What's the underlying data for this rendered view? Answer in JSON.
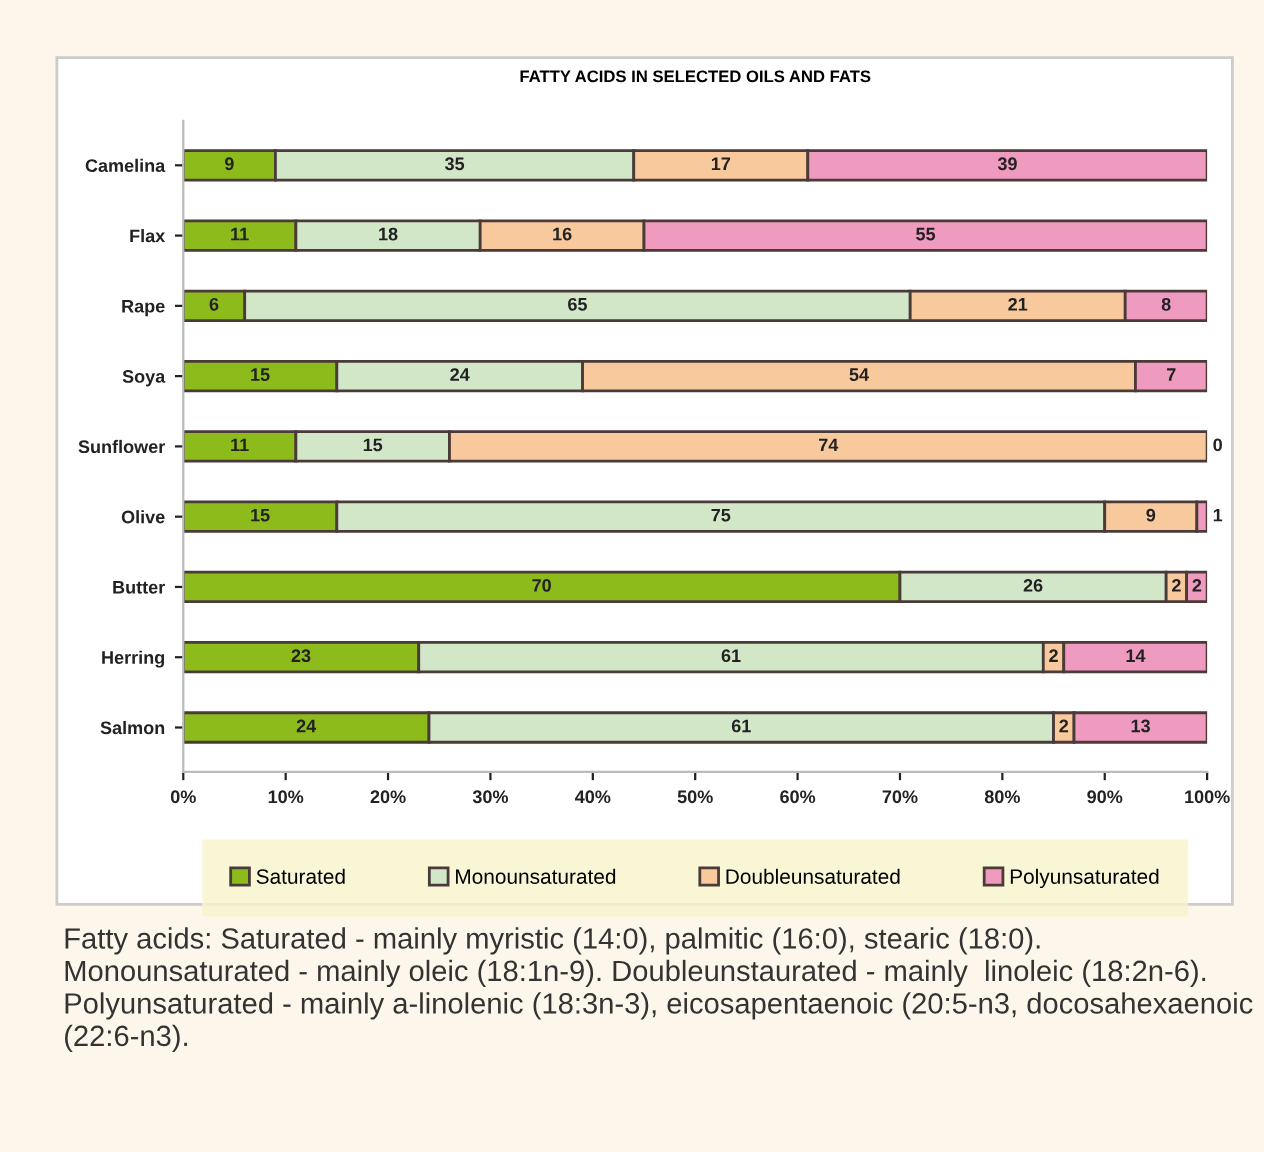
{
  "chart_data": {
    "type": "bar",
    "orientation": "horizontal",
    "stacked": true,
    "title": "FATTY ACIDS IN SELECTED OILS AND FATS",
    "categories": [
      "Camelina",
      "Flax",
      "Rape",
      "Soya",
      "Sunflower",
      "Olive",
      "Butter",
      "Herring",
      "Salmon"
    ],
    "series": [
      {
        "name": "Saturated",
        "color": "#8dbb1c",
        "values": [
          9,
          11,
          6,
          15,
          11,
          15,
          70,
          23,
          24
        ]
      },
      {
        "name": "Monounsaturated",
        "color": "#d2e7c8",
        "values": [
          35,
          18,
          65,
          24,
          15,
          75,
          26,
          61,
          61
        ]
      },
      {
        "name": "Doubleunsaturated",
        "color": "#f8c99c",
        "values": [
          17,
          16,
          21,
          54,
          74,
          9,
          2,
          2,
          2
        ]
      },
      {
        "name": "Polyunsaturated",
        "color": "#ef9bbf",
        "values": [
          39,
          55,
          8,
          7,
          0,
          1,
          2,
          14,
          13
        ]
      }
    ],
    "xlim": [
      0,
      100
    ],
    "xticks": [
      {
        "value": 0,
        "label": "0%"
      },
      {
        "value": 10,
        "label": "10%"
      },
      {
        "value": 20,
        "label": "20%"
      },
      {
        "value": 30,
        "label": "30%"
      },
      {
        "value": 40,
        "label": "40%"
      },
      {
        "value": 50,
        "label": "50%"
      },
      {
        "value": 60,
        "label": "60%"
      },
      {
        "value": 70,
        "label": "70%"
      },
      {
        "value": 80,
        "label": "80%"
      },
      {
        "value": 90,
        "label": "90%"
      },
      {
        "value": 100,
        "label": "100%"
      }
    ],
    "data_labels": true,
    "grid": false,
    "legend": "bottom",
    "annotations": [
      "Fatty acids: Saturated - mainly myristic (14:0), palmitic (16:0), stearic (18:0). Monounsaturated - mainly oleic (18:1n-9). Doubleunstaurated - mainly  linoleic (18:2n-6). Polyunsaturated - mainly a-linolenic (18:3n-3), eicosapentaenoic (20:5-n3, docosahexaenoic (22:6-n3)."
    ]
  }
}
